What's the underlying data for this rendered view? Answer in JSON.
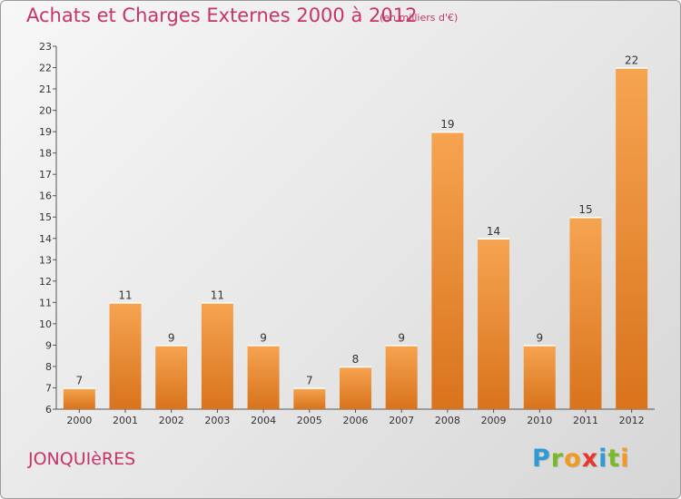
{
  "chart_data": {
    "type": "bar",
    "title": "Achats et Charges Externes 2000 à 2012",
    "subtitle": "(en milliers d'€)",
    "categories": [
      "2000",
      "2001",
      "2002",
      "2003",
      "2004",
      "2005",
      "2006",
      "2007",
      "2008",
      "2009",
      "2010",
      "2011",
      "2012"
    ],
    "values": [
      7,
      11,
      9,
      11,
      9,
      7,
      8,
      9,
      19,
      14,
      9,
      15,
      22
    ],
    "ylim": [
      6,
      23
    ],
    "yticks": [
      6,
      7,
      8,
      9,
      10,
      11,
      12,
      13,
      14,
      15,
      16,
      17,
      18,
      19,
      20,
      21,
      22,
      23
    ],
    "grid": false,
    "bar_color": "#f0923c",
    "bar_color_dark": "#d9761d",
    "text_color": "#c8336a"
  },
  "footer": {
    "city": "JONQUIèRES",
    "logo_letters": [
      {
        "ch": "P",
        "color": "#2e9bd6"
      },
      {
        "ch": "r",
        "color": "#7ab928"
      },
      {
        "ch": "o",
        "color": "#f29a1d"
      },
      {
        "ch": "x",
        "color": "#e8352e"
      },
      {
        "ch": "i",
        "color": "#2e9bd6"
      },
      {
        "ch": "t",
        "color": "#7ab928"
      },
      {
        "ch": "i",
        "color": "#f29a1d"
      }
    ]
  }
}
